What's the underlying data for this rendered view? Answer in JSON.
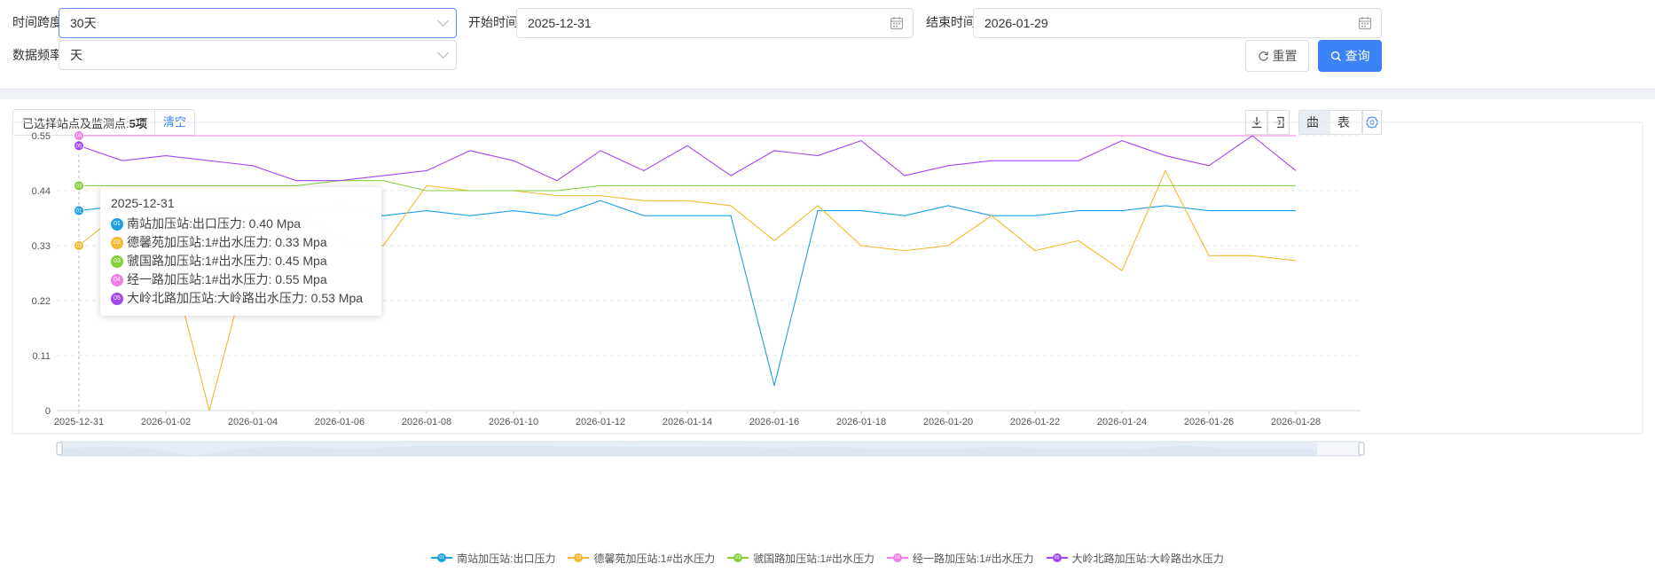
{
  "filters": {
    "span_label": "时间跨度:",
    "span_value": "30天",
    "start_label": "开始时间:",
    "start_value": "2025-12-31",
    "end_label": "结束时间:",
    "end_value": "2026-01-29",
    "freq_label": "数据频率:",
    "freq_value": "天",
    "reset_label": "重置",
    "query_label": "查询"
  },
  "toolbar": {
    "selected_prefix": "已选择站点及监测点:",
    "selected_count": "5项",
    "clear_label": "清空",
    "view_curve": "曲线",
    "view_table": "表格"
  },
  "colors": {
    "s1": "#1ea0e6",
    "s2": "#f5b82e",
    "s3": "#86cf3c",
    "s4": "#f37ee6",
    "s5": "#a347f0",
    "accent": "#3b82f6"
  },
  "icons": {
    "download": "download-icon",
    "export": "export-icon",
    "settings": "gear-icon",
    "calendar": "calendar-icon",
    "reset": "refresh-icon",
    "search": "search-icon"
  },
  "tooltip": {
    "date": "2025-12-31",
    "rows": [
      {
        "badge": "01",
        "text": "南站加压站:出口压力: 0.40 Mpa"
      },
      {
        "badge": "02",
        "text": "德馨苑加压站:1#出水压力: 0.33 Mpa"
      },
      {
        "badge": "03",
        "text": "虢国路加压站:1#出水压力: 0.45 Mpa"
      },
      {
        "badge": "04",
        "text": "经一路加压站:1#出水压力: 0.55 Mpa"
      },
      {
        "badge": "05",
        "text": "大岭北路加压站:大岭路出水压力: 0.53 Mpa"
      }
    ]
  },
  "chart_data": {
    "type": "line",
    "x": [
      "2025-12-31",
      "2026-01-01",
      "2026-01-02",
      "2026-01-03",
      "2026-01-04",
      "2026-01-05",
      "2026-01-06",
      "2026-01-07",
      "2026-01-08",
      "2026-01-09",
      "2026-01-10",
      "2026-01-11",
      "2026-01-12",
      "2026-01-13",
      "2026-01-14",
      "2026-01-15",
      "2026-01-16",
      "2026-01-17",
      "2026-01-18",
      "2026-01-19",
      "2026-01-20",
      "2026-01-21",
      "2026-01-22",
      "2026-01-23",
      "2026-01-24",
      "2026-01-25",
      "2026-01-26",
      "2026-01-27",
      "2026-01-28"
    ],
    "x_tick_labels": [
      "2025-12-31",
      "2026-01-02",
      "2026-01-04",
      "2026-01-06",
      "2026-01-08",
      "2026-01-10",
      "2026-01-12",
      "2026-01-14",
      "2026-01-16",
      "2026-01-18",
      "2026-01-20",
      "2026-01-22",
      "2026-01-24",
      "2026-01-26",
      "2026-01-28"
    ],
    "y_ticks": [
      0,
      0.11,
      0.22,
      0.33,
      0.44,
      0.55
    ],
    "ylim": [
      0,
      0.55
    ],
    "grid": "horizontal-dashed",
    "legend_position": "bottom-center",
    "series": [
      {
        "name": "南站加压站:出口压力",
        "badge": "01",
        "color": "#1ea0e6",
        "values": [
          0.4,
          0.41,
          0.4,
          0.4,
          0.4,
          0.4,
          0.41,
          0.39,
          0.4,
          0.39,
          0.4,
          0.39,
          0.42,
          0.39,
          0.39,
          0.39,
          0.05,
          0.4,
          0.4,
          0.39,
          0.41,
          0.39,
          0.39,
          0.4,
          0.4,
          0.41,
          0.4,
          0.4,
          0.4
        ]
      },
      {
        "name": "德馨苑加压站:1#出水压力",
        "badge": "02",
        "color": "#f5b82e",
        "values": [
          0.33,
          0.4,
          0.34,
          0.0,
          0.33,
          0.4,
          0.34,
          0.33,
          0.45,
          0.44,
          0.44,
          0.43,
          0.43,
          0.42,
          0.42,
          0.41,
          0.34,
          0.41,
          0.33,
          0.32,
          0.33,
          0.39,
          0.32,
          0.34,
          0.28,
          0.48,
          0.31,
          0.31,
          0.3
        ]
      },
      {
        "name": "虢国路加压站:1#出水压力",
        "badge": "03",
        "color": "#86cf3c",
        "values": [
          0.45,
          0.45,
          0.45,
          0.45,
          0.45,
          0.45,
          0.46,
          0.46,
          0.44,
          0.44,
          0.44,
          0.44,
          0.45,
          0.45,
          0.45,
          0.45,
          0.45,
          0.45,
          0.45,
          0.45,
          0.45,
          0.45,
          0.45,
          0.45,
          0.45,
          0.45,
          0.45,
          0.45,
          0.45
        ]
      },
      {
        "name": "经一路加压站:1#出水压力",
        "badge": "04",
        "color": "#f37ee6",
        "values": [
          0.55,
          0.55,
          0.55,
          0.55,
          0.55,
          0.55,
          0.55,
          0.55,
          0.55,
          0.55,
          0.55,
          0.55,
          0.55,
          0.55,
          0.55,
          0.55,
          0.55,
          0.55,
          0.55,
          0.55,
          0.55,
          0.55,
          0.55,
          0.55,
          0.55,
          0.55,
          0.55,
          0.55,
          0.55
        ]
      },
      {
        "name": "大岭北路加压站:大岭路出水压力",
        "badge": "05",
        "color": "#a347f0",
        "values": [
          0.53,
          0.5,
          0.51,
          0.5,
          0.49,
          0.46,
          0.46,
          0.47,
          0.48,
          0.52,
          0.5,
          0.46,
          0.52,
          0.48,
          0.53,
          0.47,
          0.52,
          0.51,
          0.54,
          0.47,
          0.49,
          0.5,
          0.5,
          0.5,
          0.54,
          0.51,
          0.49,
          0.55,
          0.48
        ]
      }
    ]
  }
}
